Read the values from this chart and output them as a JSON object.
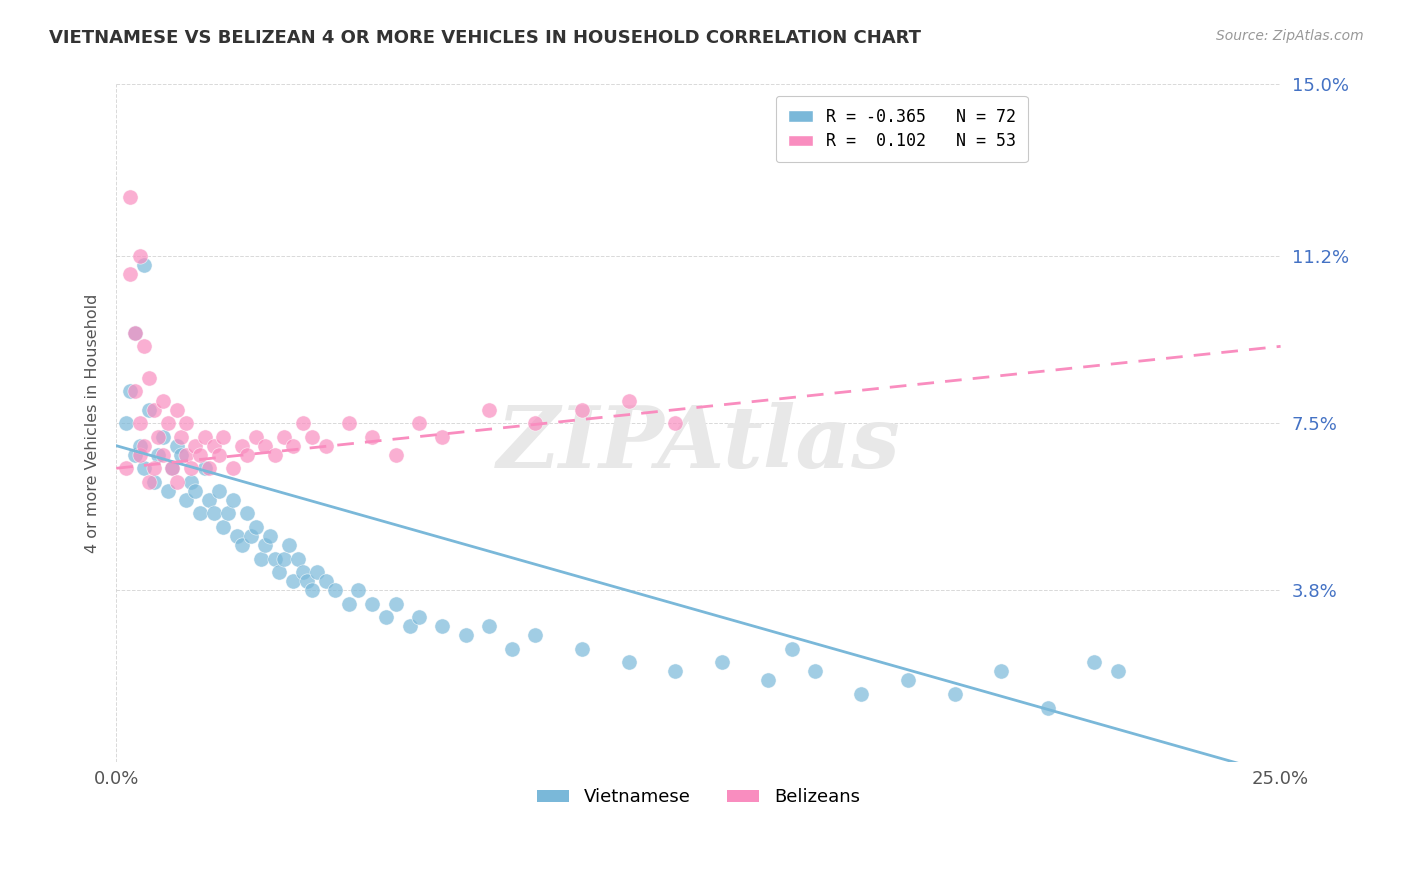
{
  "title": "VIETNAMESE VS BELIZEAN 4 OR MORE VEHICLES IN HOUSEHOLD CORRELATION CHART",
  "source_text": "Source: ZipAtlas.com",
  "ylabel": "4 or more Vehicles in Household",
  "watermark": "ZIPAtlas",
  "xlim": [
    0.0,
    25.0
  ],
  "ylim": [
    0.0,
    15.0
  ],
  "ytick_values": [
    3.8,
    7.5,
    11.2,
    15.0
  ],
  "ytick_labels": [
    "3.8%",
    "7.5%",
    "11.2%",
    "15.0%"
  ],
  "color_vietnamese": "#7ab8d9",
  "color_belizean": "#f98dbf",
  "r_vietnamese": -0.365,
  "n_vietnamese": 72,
  "r_belizean": 0.102,
  "n_belizean": 53,
  "viet_line_y0": 7.0,
  "viet_line_y1": -0.3,
  "beli_line_y0": 6.5,
  "beli_line_y1": 9.2,
  "background_color": "#ffffff",
  "grid_color": "#d5d5d5",
  "title_color": "#333333",
  "watermark_color": "#e8e8e8",
  "legend_r_viet": "R = -0.365",
  "legend_n_viet": "N = 72",
  "legend_r_beli": "R =  0.102",
  "legend_n_beli": "N = 53",
  "viet_points_x": [
    0.2,
    0.3,
    0.4,
    0.5,
    0.6,
    0.7,
    0.8,
    0.9,
    1.0,
    1.1,
    1.2,
    1.3,
    1.4,
    1.5,
    1.6,
    1.7,
    1.8,
    1.9,
    2.0,
    2.1,
    2.2,
    2.3,
    2.4,
    2.5,
    2.6,
    2.7,
    2.8,
    2.9,
    3.0,
    3.1,
    3.2,
    3.3,
    3.4,
    3.5,
    3.6,
    3.7,
    3.8,
    3.9,
    4.0,
    4.1,
    4.2,
    4.3,
    4.5,
    4.7,
    5.0,
    5.2,
    5.5,
    5.8,
    6.0,
    6.3,
    6.5,
    7.0,
    7.5,
    8.0,
    8.5,
    9.0,
    10.0,
    11.0,
    12.0,
    13.0,
    14.0,
    14.5,
    15.0,
    16.0,
    17.0,
    18.0,
    19.0,
    20.0,
    21.0,
    21.5,
    0.4,
    0.6
  ],
  "viet_points_y": [
    7.5,
    8.2,
    6.8,
    7.0,
    6.5,
    7.8,
    6.2,
    6.8,
    7.2,
    6.0,
    6.5,
    7.0,
    6.8,
    5.8,
    6.2,
    6.0,
    5.5,
    6.5,
    5.8,
    5.5,
    6.0,
    5.2,
    5.5,
    5.8,
    5.0,
    4.8,
    5.5,
    5.0,
    5.2,
    4.5,
    4.8,
    5.0,
    4.5,
    4.2,
    4.5,
    4.8,
    4.0,
    4.5,
    4.2,
    4.0,
    3.8,
    4.2,
    4.0,
    3.8,
    3.5,
    3.8,
    3.5,
    3.2,
    3.5,
    3.0,
    3.2,
    3.0,
    2.8,
    3.0,
    2.5,
    2.8,
    2.5,
    2.2,
    2.0,
    2.2,
    1.8,
    2.5,
    2.0,
    1.5,
    1.8,
    1.5,
    2.0,
    1.2,
    2.2,
    2.0,
    9.5,
    11.0
  ],
  "beli_points_x": [
    0.2,
    0.3,
    0.4,
    0.5,
    0.5,
    0.6,
    0.6,
    0.7,
    0.7,
    0.8,
    0.8,
    0.9,
    1.0,
    1.0,
    1.1,
    1.2,
    1.3,
    1.3,
    1.4,
    1.5,
    1.5,
    1.6,
    1.7,
    1.8,
    1.9,
    2.0,
    2.1,
    2.2,
    2.3,
    2.5,
    2.7,
    2.8,
    3.0,
    3.2,
    3.4,
    3.6,
    3.8,
    4.0,
    4.2,
    4.5,
    5.0,
    5.5,
    6.0,
    6.5,
    7.0,
    8.0,
    9.0,
    10.0,
    11.0,
    12.0,
    0.3,
    0.4,
    0.5
  ],
  "beli_points_y": [
    6.5,
    12.5,
    8.2,
    7.5,
    6.8,
    9.2,
    7.0,
    8.5,
    6.2,
    7.8,
    6.5,
    7.2,
    6.8,
    8.0,
    7.5,
    6.5,
    7.8,
    6.2,
    7.2,
    6.8,
    7.5,
    6.5,
    7.0,
    6.8,
    7.2,
    6.5,
    7.0,
    6.8,
    7.2,
    6.5,
    7.0,
    6.8,
    7.2,
    7.0,
    6.8,
    7.2,
    7.0,
    7.5,
    7.2,
    7.0,
    7.5,
    7.2,
    6.8,
    7.5,
    7.2,
    7.8,
    7.5,
    7.8,
    8.0,
    7.5,
    10.8,
    9.5,
    11.2
  ]
}
